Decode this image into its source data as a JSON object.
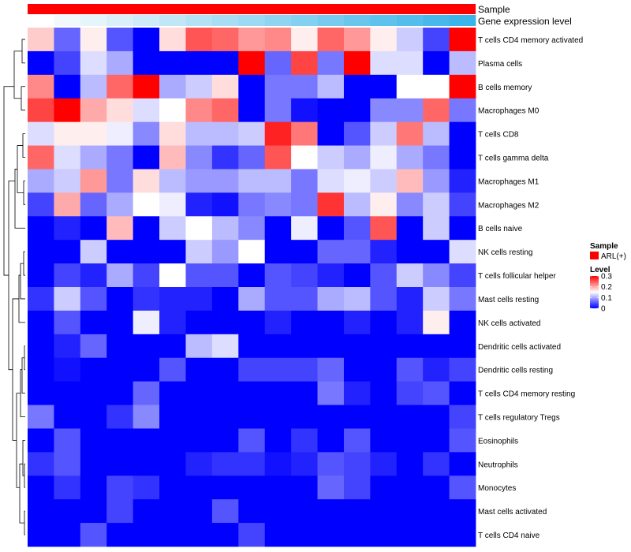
{
  "chart_data": {
    "type": "heatmap",
    "annotation_tracks": [
      {
        "name": "Sample",
        "color": "#ff0000"
      },
      {
        "name": "Gene expression level",
        "colors": [
          "#ffffff",
          "#f2f9fc",
          "#e6f5fb",
          "#d9f0f9",
          "#cdebf8",
          "#c1e7f7",
          "#b4e2f5",
          "#a8ddf4",
          "#9cd9f3",
          "#90d4f2",
          "#84d0f1",
          "#78cbef",
          "#6bc6ee",
          "#5fc2ed",
          "#53bdeb",
          "#47b8ea",
          "#3bb4e9"
        ]
      }
    ],
    "rows": [
      "T cells CD4 memory activated",
      "Plasma cells",
      "B cells memory",
      "Macrophages M0",
      "T cells CD8",
      "T cells gamma delta",
      "Macrophages M1",
      "Macrophages M2",
      "B cells naive",
      "NK cells resting",
      "T cells follicular helper",
      "Mast cells resting",
      "NK cells activated",
      "Dendritic cells activated",
      "Dendritic cells resting",
      "T cells CD4 memory resting",
      "T cells regulatory  Tregs",
      "Eosinophils",
      "Neutrophils",
      "Monocytes",
      "Mast cells activated",
      "T cells CD4 naive"
    ],
    "n_columns": 17,
    "values": [
      [
        0.18,
        0.06,
        0.16,
        0.05,
        0.0,
        0.17,
        0.25,
        0.24,
        0.21,
        0.22,
        0.16,
        0.24,
        0.21,
        0.16,
        0.12,
        0.04,
        0.3
      ],
      [
        0.0,
        0.04,
        0.13,
        0.1,
        0.0,
        0.0,
        0.0,
        0.0,
        0.3,
        0.06,
        0.26,
        0.07,
        0.3,
        0.13,
        0.13,
        0.0,
        0.11
      ],
      [
        0.22,
        0.0,
        0.11,
        0.24,
        0.3,
        0.1,
        0.12,
        0.17,
        0.0,
        0.07,
        0.07,
        0.11,
        0.0,
        0.0,
        0.15,
        0.15,
        0.3
      ],
      [
        0.26,
        0.3,
        0.2,
        0.17,
        0.13,
        0.15,
        0.22,
        0.24,
        0.0,
        0.07,
        0.01,
        0.0,
        0.0,
        0.08,
        0.08,
        0.24,
        0.07
      ],
      [
        0.13,
        0.16,
        0.16,
        0.14,
        0.08,
        0.17,
        0.11,
        0.11,
        0.12,
        0.28,
        0.23,
        0.0,
        0.05,
        0.12,
        0.23,
        0.11,
        0.0
      ],
      [
        0.24,
        0.13,
        0.1,
        0.07,
        0.0,
        0.19,
        0.08,
        0.03,
        0.06,
        0.25,
        0.15,
        0.12,
        0.1,
        0.14,
        0.1,
        0.07,
        0.0
      ],
      [
        0.1,
        0.12,
        0.21,
        0.07,
        0.17,
        0.11,
        0.09,
        0.09,
        0.11,
        0.11,
        0.07,
        0.13,
        0.14,
        0.12,
        0.19,
        0.09,
        0.02
      ],
      [
        0.04,
        0.2,
        0.06,
        0.1,
        0.15,
        0.14,
        0.02,
        0.01,
        0.07,
        0.08,
        0.07,
        0.27,
        0.11,
        0.16,
        0.08,
        0.12,
        0.04
      ],
      [
        0.0,
        0.02,
        0.0,
        0.19,
        0.0,
        0.12,
        0.15,
        0.11,
        0.08,
        0.0,
        0.14,
        0.0,
        0.05,
        0.25,
        0.0,
        0.12,
        0.0
      ],
      [
        0.0,
        0.0,
        0.12,
        0.0,
        0.0,
        0.0,
        0.12,
        0.09,
        0.15,
        0.0,
        0.0,
        0.06,
        0.06,
        0.02,
        0.0,
        0.0,
        0.13
      ],
      [
        0.0,
        0.04,
        0.02,
        0.1,
        0.04,
        0.15,
        0.05,
        0.05,
        0.0,
        0.05,
        0.04,
        0.02,
        0.0,
        0.05,
        0.12,
        0.08,
        0.04
      ],
      [
        0.03,
        0.12,
        0.05,
        0.0,
        0.03,
        0.02,
        0.02,
        0.0,
        0.1,
        0.05,
        0.05,
        0.1,
        0.11,
        0.05,
        0.02,
        0.12,
        0.07
      ],
      [
        0.0,
        0.05,
        0.0,
        0.0,
        0.14,
        0.02,
        0.0,
        0.0,
        0.0,
        0.02,
        0.0,
        0.0,
        0.02,
        0.0,
        0.02,
        0.16,
        0.0
      ],
      [
        0.0,
        0.02,
        0.06,
        0.0,
        0.0,
        0.0,
        0.11,
        0.13,
        0.0,
        0.0,
        0.0,
        0.0,
        0.0,
        0.0,
        0.0,
        0.0,
        0.0
      ],
      [
        0.0,
        0.01,
        0.0,
        0.0,
        0.0,
        0.05,
        0.0,
        0.0,
        0.04,
        0.04,
        0.04,
        0.06,
        0.0,
        0.0,
        0.05,
        0.02,
        0.04
      ],
      [
        0.0,
        0.0,
        0.0,
        0.0,
        0.06,
        0.0,
        0.0,
        0.0,
        0.0,
        0.0,
        0.0,
        0.07,
        0.02,
        0.0,
        0.04,
        0.05,
        0.0
      ],
      [
        0.07,
        0.0,
        0.0,
        0.03,
        0.08,
        0.0,
        0.0,
        0.0,
        0.0,
        0.0,
        0.0,
        0.0,
        0.0,
        0.0,
        0.0,
        0.0,
        0.04
      ],
      [
        0.0,
        0.05,
        0.0,
        0.0,
        0.0,
        0.0,
        0.0,
        0.0,
        0.05,
        0.0,
        0.03,
        0.0,
        0.05,
        0.0,
        0.0,
        0.0,
        0.05
      ],
      [
        0.03,
        0.05,
        0.0,
        0.0,
        0.0,
        0.0,
        0.02,
        0.03,
        0.03,
        0.01,
        0.02,
        0.05,
        0.04,
        0.02,
        0.0,
        0.03,
        0.0
      ],
      [
        0.0,
        0.03,
        0.0,
        0.04,
        0.03,
        0.0,
        0.0,
        0.0,
        0.0,
        0.0,
        0.0,
        0.06,
        0.04,
        0.0,
        0.0,
        0.0,
        0.05
      ],
      [
        0.0,
        0.0,
        0.0,
        0.04,
        0.0,
        0.0,
        0.0,
        0.05,
        0.0,
        0.0,
        0.0,
        0.0,
        0.0,
        0.0,
        0.0,
        0.0,
        0.0
      ],
      [
        0.0,
        0.0,
        0.05,
        0.0,
        0.0,
        0.0,
        0.0,
        0.0,
        0.04,
        0.0,
        0.0,
        0.0,
        0.0,
        0.0,
        0.0,
        0.0,
        0.0
      ]
    ],
    "color_scale": {
      "low": "#0000ff",
      "mid": "#ffffff",
      "high": "#ff0000",
      "domain": [
        0,
        0.3
      ],
      "midpoint": 0.15
    },
    "legend": {
      "sample_title": "Sample",
      "sample_entry": "ARL(+)",
      "level_title": "Level",
      "level_ticks": [
        {
          "value": 0.3,
          "label": "0.3"
        },
        {
          "value": 0.2,
          "label": "0.2"
        },
        {
          "value": 0.1,
          "label": "0.1"
        },
        {
          "value": 0.0,
          "label": "0"
        }
      ]
    },
    "row_dendrogram": true
  }
}
